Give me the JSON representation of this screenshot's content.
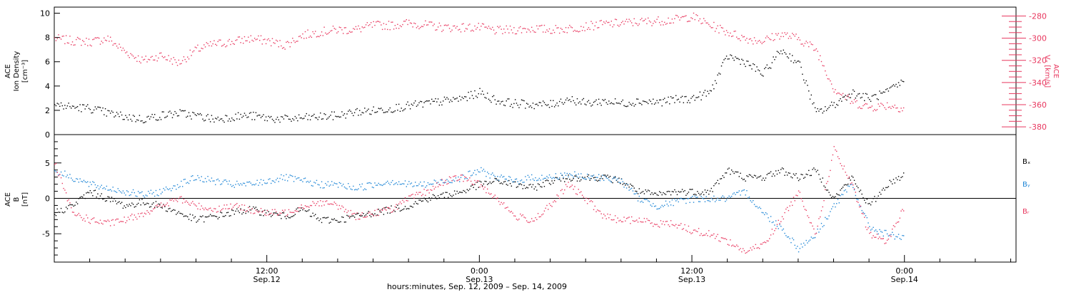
{
  "xlabel": "hours:minutes, Sep. 12, 2009 – Sep. 14, 2009",
  "colors": {
    "black": "#000000",
    "pink": "#e8385f",
    "blue": "#1f86d6"
  },
  "x_ticks": [
    {
      "time": "12:00",
      "date": "Sep.12",
      "t": 12
    },
    {
      "time": "0:00",
      "date": "Sep.13",
      "t": 24
    },
    {
      "time": "12:00",
      "date": "Sep.13",
      "t": 36
    },
    {
      "time": "0:00",
      "date": "Sep.14",
      "t": 48
    }
  ],
  "chart_data": [
    {
      "type": "scatter",
      "panel": "top",
      "ylabel_left": [
        "ACE",
        "Ion Density",
        "[cm⁻³]"
      ],
      "ylabel_right": [
        "ACE",
        "Vₓ [km/s]"
      ],
      "xlim": [
        0,
        54.3
      ],
      "ylim_left": [
        0,
        10.5
      ],
      "ylim_right": [
        -387,
        -272
      ],
      "yticks_left": [
        0,
        2,
        4,
        6,
        8,
        10
      ],
      "yticks_right": [
        -280,
        -300,
        -320,
        -340,
        -360,
        -380
      ],
      "series": [
        {
          "axis": "left",
          "color": "black",
          "x": [
            0,
            1,
            2,
            3,
            4,
            5,
            6,
            7,
            8,
            9,
            10,
            11,
            12,
            13,
            14,
            15,
            16,
            17,
            18,
            19,
            20,
            21,
            22,
            23,
            24,
            25,
            26,
            27,
            28,
            29,
            30,
            31,
            32,
            33,
            34,
            35,
            36,
            37,
            38,
            39,
            40,
            41,
            42,
            43,
            44,
            45,
            46,
            47,
            48
          ],
          "values": [
            2.5,
            2.3,
            2.2,
            1.8,
            1.5,
            1.3,
            1.6,
            1.8,
            1.6,
            1.3,
            1.5,
            1.6,
            1.4,
            1.3,
            1.4,
            1.5,
            1.6,
            1.9,
            2.0,
            2.2,
            2.4,
            2.6,
            2.8,
            3.0,
            3.5,
            2.8,
            2.6,
            2.5,
            2.5,
            3.0,
            2.6,
            2.8,
            2.6,
            2.8,
            2.7,
            2.9,
            3.0,
            3.5,
            6.5,
            6.0,
            5.0,
            7.0,
            6.0,
            1.8,
            2.5,
            3.5,
            3.0,
            3.5,
            4.5
          ]
        },
        {
          "axis": "right",
          "color": "pink",
          "x": [
            0,
            1,
            2,
            3,
            4,
            5,
            6,
            7,
            8,
            9,
            10,
            11,
            12,
            13,
            14,
            15,
            16,
            17,
            18,
            19,
            20,
            21,
            22,
            23,
            24,
            25,
            26,
            27,
            28,
            29,
            30,
            31,
            32,
            33,
            34,
            35,
            36,
            37,
            38,
            39,
            40,
            41,
            42,
            43,
            44,
            45,
            46,
            47,
            48
          ],
          "values": [
            -300,
            -302,
            -303,
            -300,
            -312,
            -320,
            -315,
            -322,
            -310,
            -305,
            -303,
            -300,
            -302,
            -306,
            -297,
            -294,
            -292,
            -292,
            -288,
            -288,
            -286,
            -288,
            -290,
            -290,
            -290,
            -293,
            -292,
            -291,
            -292,
            -291,
            -289,
            -287,
            -286,
            -285,
            -284,
            -283,
            -280,
            -288,
            -294,
            -300,
            -302,
            -296,
            -300,
            -310,
            -345,
            -357,
            -362,
            -360,
            -363
          ]
        }
      ]
    },
    {
      "type": "scatter",
      "panel": "bottom",
      "ylabel_left": [
        "ACE",
        "B",
        "[nT]"
      ],
      "xlim": [
        0,
        54.3
      ],
      "ylim": [
        -9,
        9
      ],
      "yticks": [
        5,
        0,
        -5
      ],
      "zero_line": true,
      "legend": [
        "Bₓ",
        "Bᵧ",
        "Bᵣ"
      ],
      "series": [
        {
          "name": "Bₓ",
          "color": "black",
          "x": [
            0,
            1,
            2,
            3,
            4,
            5,
            6,
            7,
            8,
            9,
            10,
            11,
            12,
            13,
            14,
            15,
            16,
            17,
            18,
            19,
            20,
            21,
            22,
            23,
            24,
            25,
            26,
            27,
            28,
            29,
            30,
            31,
            32,
            33,
            34,
            35,
            36,
            37,
            38,
            39,
            40,
            41,
            42,
            43,
            44,
            45,
            46,
            47,
            48
          ],
          "values": [
            -2.0,
            -1.0,
            1.0,
            0.0,
            -1.0,
            -0.5,
            -1.0,
            -2.0,
            -3.0,
            -2.5,
            -2.0,
            -1.5,
            -2.0,
            -2.5,
            -1.5,
            -3.0,
            -3.0,
            -2.5,
            -2.0,
            -1.5,
            -1.0,
            0.0,
            0.5,
            1.0,
            2.0,
            2.5,
            2.0,
            1.5,
            2.5,
            3.0,
            3.0,
            3.0,
            2.5,
            1.0,
            0.5,
            1.0,
            1.0,
            1.0,
            4.0,
            3.0,
            3.0,
            4.0,
            3.0,
            4.0,
            0.0,
            3.0,
            -1.0,
            2.0,
            3.5
          ]
        },
        {
          "name": "Bᵧ",
          "color": "blue",
          "x": [
            0,
            1,
            2,
            3,
            4,
            5,
            6,
            7,
            8,
            9,
            10,
            11,
            12,
            13,
            14,
            15,
            16,
            17,
            18,
            19,
            20,
            21,
            22,
            23,
            24,
            25,
            26,
            27,
            28,
            29,
            30,
            31,
            32,
            33,
            34,
            35,
            36,
            37,
            38,
            39,
            40,
            41,
            42,
            43,
            44,
            45,
            46,
            47,
            48
          ],
          "values": [
            4.0,
            3.0,
            2.0,
            1.5,
            1.0,
            0.5,
            1.0,
            2.0,
            3.0,
            2.5,
            2.0,
            2.0,
            2.5,
            3.0,
            2.5,
            2.0,
            2.0,
            1.5,
            2.0,
            2.5,
            2.0,
            2.0,
            2.5,
            3.0,
            4.0,
            3.0,
            2.5,
            3.0,
            3.0,
            3.5,
            3.0,
            3.0,
            2.5,
            0.0,
            -1.0,
            -0.5,
            0.0,
            0.0,
            0.0,
            1.0,
            -2.0,
            -4.0,
            -7.0,
            -5.0,
            -1.0,
            2.0,
            -4.0,
            -5.0,
            -5.5
          ]
        },
        {
          "name": "Bᵣ",
          "color": "pink",
          "x": [
            0,
            1,
            2,
            3,
            4,
            5,
            6,
            7,
            8,
            9,
            10,
            11,
            12,
            13,
            14,
            15,
            16,
            17,
            18,
            19,
            20,
            21,
            22,
            23,
            24,
            25,
            26,
            27,
            28,
            29,
            30,
            31,
            32,
            33,
            34,
            35,
            36,
            37,
            38,
            39,
            40,
            41,
            42,
            43,
            44,
            45,
            46,
            47,
            48
          ],
          "values": [
            5.0,
            -2.0,
            -3.0,
            -3.5,
            -3.0,
            -2.0,
            -1.0,
            0.0,
            -1.0,
            -1.5,
            -1.0,
            -1.5,
            -2.0,
            -2.0,
            -1.0,
            -0.5,
            -1.0,
            -2.5,
            -2.0,
            -1.5,
            0.0,
            1.0,
            2.5,
            3.0,
            2.0,
            0.0,
            -2.5,
            -3.0,
            -1.0,
            2.0,
            0.0,
            -2.5,
            -3.0,
            -3.0,
            -3.5,
            -3.5,
            -4.5,
            -5.0,
            -6.0,
            -7.5,
            -6.5,
            -3.0,
            1.0,
            -5.0,
            7.0,
            2.0,
            -5.0,
            -6.0,
            -1.0
          ]
        }
      ]
    }
  ]
}
